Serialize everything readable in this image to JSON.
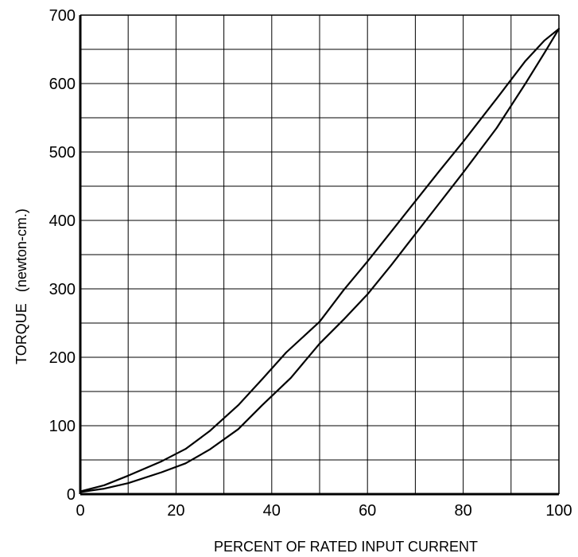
{
  "chart_data": {
    "type": "line",
    "title": "",
    "xlabel": "PERCENT OF RATED INPUT CURRENT",
    "ylabel": "TORQUE",
    "ylabel_unit": "(newton-cm.)",
    "xlim": [
      0,
      100
    ],
    "ylim": [
      0,
      700
    ],
    "x_ticks": [
      0,
      20,
      40,
      60,
      80,
      100
    ],
    "y_ticks": [
      0,
      100,
      200,
      300,
      400,
      500,
      600,
      700
    ],
    "grid": true,
    "series": [
      {
        "x": [
          0,
          5,
          10,
          17,
          22,
          27,
          33,
          38,
          43,
          50,
          55,
          60,
          65,
          70,
          75,
          80,
          87,
          93,
          97,
          100
        ],
        "values": [
          4,
          13,
          27,
          48,
          66,
          92,
          130,
          168,
          207,
          252,
          298,
          340,
          384,
          428,
          472,
          515,
          578,
          633,
          663,
          680
        ]
      },
      {
        "x": [
          0,
          5,
          10,
          17,
          22,
          27,
          33,
          38,
          44,
          50,
          55,
          60,
          65,
          70,
          75,
          80,
          87,
          93,
          97,
          100
        ],
        "values": [
          3,
          8,
          16,
          32,
          45,
          65,
          95,
          130,
          170,
          220,
          255,
          292,
          335,
          380,
          425,
          470,
          535,
          600,
          645,
          680
        ]
      }
    ]
  }
}
